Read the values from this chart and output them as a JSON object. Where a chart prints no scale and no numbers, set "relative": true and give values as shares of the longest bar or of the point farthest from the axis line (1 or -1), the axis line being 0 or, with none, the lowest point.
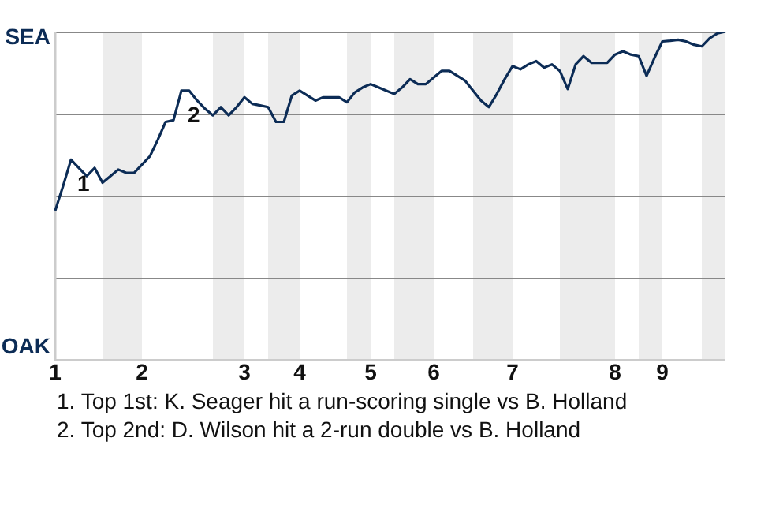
{
  "chart_data": {
    "type": "line",
    "relative": true,
    "categories": [
      "1",
      null,
      null,
      null,
      null,
      null,
      null,
      null,
      null,
      null,
      null,
      "2",
      null,
      null,
      null,
      null,
      null,
      null,
      null,
      null,
      null,
      null,
      null,
      null,
      "3",
      null,
      null,
      null,
      null,
      null,
      null,
      "4",
      null,
      null,
      null,
      null,
      null,
      null,
      null,
      null,
      "5",
      null,
      null,
      null,
      null,
      null,
      null,
      null,
      "6",
      null,
      null,
      null,
      null,
      null,
      null,
      null,
      null,
      null,
      "7",
      null,
      null,
      null,
      null,
      null,
      null,
      null,
      null,
      null,
      null,
      null,
      null,
      "8",
      null,
      null,
      null,
      null,
      null,
      "9",
      null,
      null,
      null,
      null,
      null,
      null,
      null,
      null
    ],
    "series": [
      {
        "color": "#0c2c56",
        "values": [
          0.455,
          0.53,
          0.61,
          0.585,
          0.56,
          0.585,
          0.54,
          0.56,
          0.58,
          0.57,
          0.57,
          0.595,
          0.62,
          0.67,
          0.725,
          0.73,
          0.82,
          0.82,
          0.79,
          0.765,
          0.745,
          0.77,
          0.745,
          0.77,
          0.8,
          0.78,
          0.775,
          0.77,
          0.725,
          0.725,
          0.805,
          0.82,
          0.805,
          0.79,
          0.8,
          0.8,
          0.8,
          0.785,
          0.815,
          0.83,
          0.84,
          0.83,
          0.82,
          0.81,
          0.83,
          0.855,
          0.84,
          0.84,
          0.86,
          0.88,
          0.88,
          0.865,
          0.85,
          0.82,
          0.79,
          0.77,
          0.81,
          0.855,
          0.895,
          0.885,
          0.9,
          0.91,
          0.89,
          0.9,
          0.88,
          0.825,
          0.9,
          0.925,
          0.905,
          0.905,
          0.905,
          0.93,
          0.94,
          0.93,
          0.925,
          0.865,
          0.92,
          0.97,
          0.972,
          0.975,
          0.97,
          0.96,
          0.955,
          0.98,
          0.995,
          1
        ]
      }
    ],
    "grid": "y",
    "legend": false,
    "marker": "none",
    "line_style": "solid",
    "annotations": [
      "1",
      "2",
      "SEA",
      "OAK",
      "1. Top 1st: K. Seager hit a run-scoring single vs B. Holland",
      "2. Top 2nd: D. Wilson hit a 2-run double vs B. Holland"
    ]
  }
}
